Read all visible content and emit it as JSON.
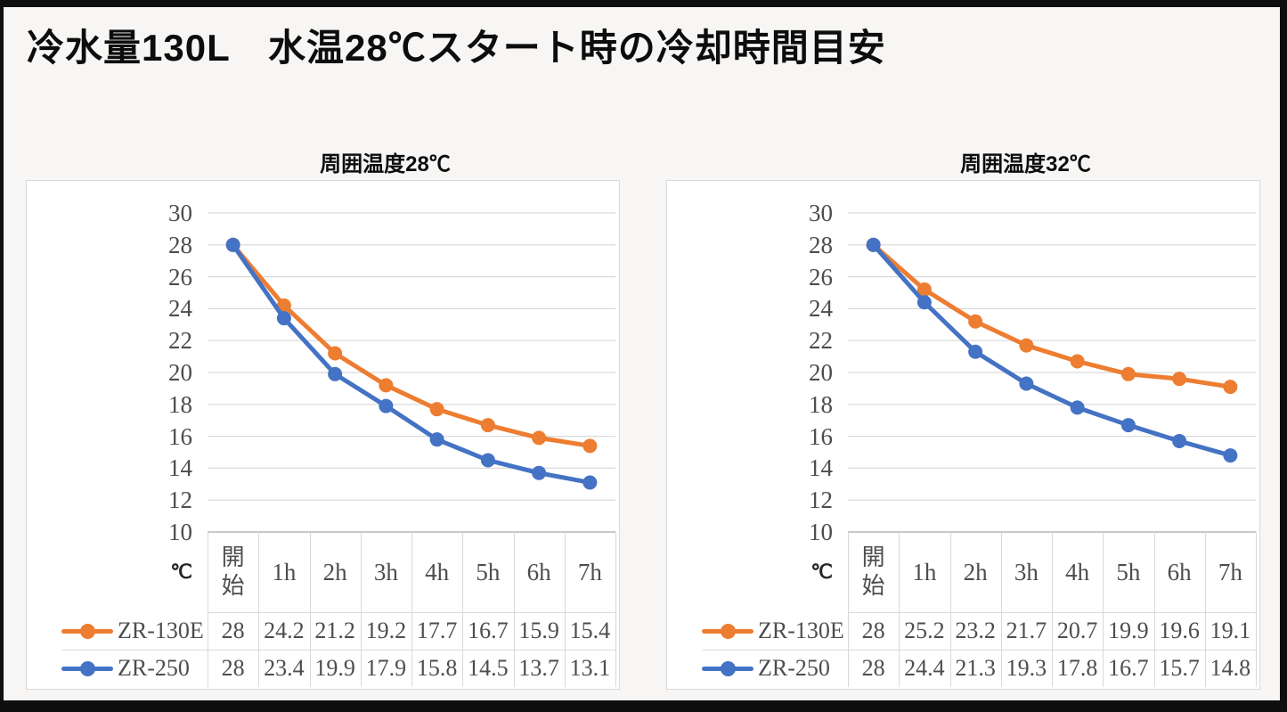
{
  "title": "冷水量130L　水温28℃スタート時の冷却時間目安",
  "colors": {
    "series_zr130e": "#ED7D31",
    "series_zr250": "#4472C4",
    "gridline": "#d9d9d9",
    "axis_line": "#b5b5b5",
    "text_gray": "#4d4d4d",
    "frame": "#0f0f0f",
    "panel_background": "#ffffff",
    "page_background": "#f7f6f4"
  },
  "chart_data": [
    {
      "type": "line",
      "title": "周囲温度28℃",
      "ylabel": "℃",
      "ylim": [
        10,
        30
      ],
      "ytick_step": 2,
      "grid": true,
      "legend_position": "left-of-data-table",
      "categories": [
        "開始",
        "1h",
        "2h",
        "3h",
        "4h",
        "5h",
        "6h",
        "7h"
      ],
      "series": [
        {
          "name": "ZR-130E",
          "color": "#ED7D31",
          "values": [
            28,
            24.2,
            21.2,
            19.2,
            17.7,
            16.7,
            15.9,
            15.4
          ]
        },
        {
          "name": "ZR-250",
          "color": "#4472C4",
          "values": [
            28,
            23.4,
            19.9,
            17.9,
            15.8,
            14.5,
            13.7,
            13.1
          ]
        }
      ]
    },
    {
      "type": "line",
      "title": "周囲温度32℃",
      "ylabel": "℃",
      "ylim": [
        10,
        30
      ],
      "ytick_step": 2,
      "grid": true,
      "legend_position": "left-of-data-table",
      "categories": [
        "開始",
        "1h",
        "2h",
        "3h",
        "4h",
        "5h",
        "6h",
        "7h"
      ],
      "series": [
        {
          "name": "ZR-130E",
          "color": "#ED7D31",
          "values": [
            28,
            25.2,
            23.2,
            21.7,
            20.7,
            19.9,
            19.6,
            19.1
          ]
        },
        {
          "name": "ZR-250",
          "color": "#4472C4",
          "values": [
            28,
            24.4,
            21.3,
            19.3,
            17.8,
            16.7,
            15.7,
            14.8
          ]
        }
      ]
    }
  ]
}
